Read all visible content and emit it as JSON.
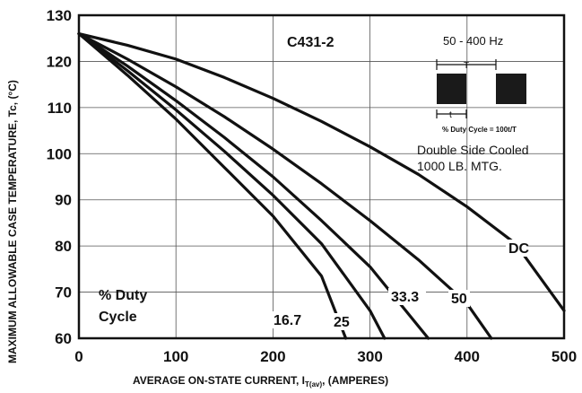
{
  "chart_data": {
    "type": "line",
    "title": "C431-2",
    "xlabel_main": "AVERAGE ON-STATE CURRENT, I",
    "xlabel_sub": "T(av)",
    "xlabel_tail": ", (AMPERES)",
    "ylabel": "MAXIMUM ALLOWABLE CASE TEMPERATURE, Tc, (°C)",
    "xlim": [
      0,
      500
    ],
    "ylim": [
      60,
      130
    ],
    "x_ticks": [
      0,
      100,
      200,
      300,
      400,
      500
    ],
    "y_ticks": [
      60,
      70,
      80,
      90,
      100,
      110,
      120,
      130
    ],
    "grid": true,
    "legend_title_line1": "% Duty",
    "legend_title_line2": "Cycle",
    "series": [
      {
        "name": "16.7",
        "x": [
          0,
          50,
          100,
          150,
          200,
          250,
          275
        ],
        "y": [
          126,
          117,
          107.5,
          97,
          86.5,
          73.5,
          60
        ]
      },
      {
        "name": "25",
        "x": [
          0,
          50,
          100,
          150,
          200,
          250,
          300,
          315
        ],
        "y": [
          126,
          118,
          109.5,
          100.5,
          91,
          80.5,
          66,
          60
        ]
      },
      {
        "name": "33.3",
        "x": [
          0,
          50,
          100,
          150,
          200,
          250,
          300,
          360
        ],
        "y": [
          126,
          119,
          111.5,
          103.5,
          95,
          85.5,
          75.5,
          60
        ]
      },
      {
        "name": "50",
        "x": [
          0,
          50,
          100,
          150,
          200,
          250,
          300,
          350,
          400,
          425
        ],
        "y": [
          126,
          120.5,
          114.5,
          108,
          101,
          93.5,
          85.5,
          77,
          67.5,
          60
        ]
      },
      {
        "name": "DC",
        "x": [
          0,
          50,
          100,
          150,
          200,
          250,
          300,
          350,
          400,
          450,
          500
        ],
        "y": [
          126,
          123.5,
          120.5,
          116.5,
          112,
          107,
          101.5,
          95.5,
          88.5,
          80.5,
          66
        ]
      }
    ],
    "inset": {
      "frequency": "50 - 400 Hz",
      "period_label": "T",
      "pulse_label": "t",
      "duty_formula": "% Duty Cycle = 100t/T",
      "cooling_line1": "Double Side Cooled",
      "cooling_line2": "1000 LB. MTG."
    }
  }
}
